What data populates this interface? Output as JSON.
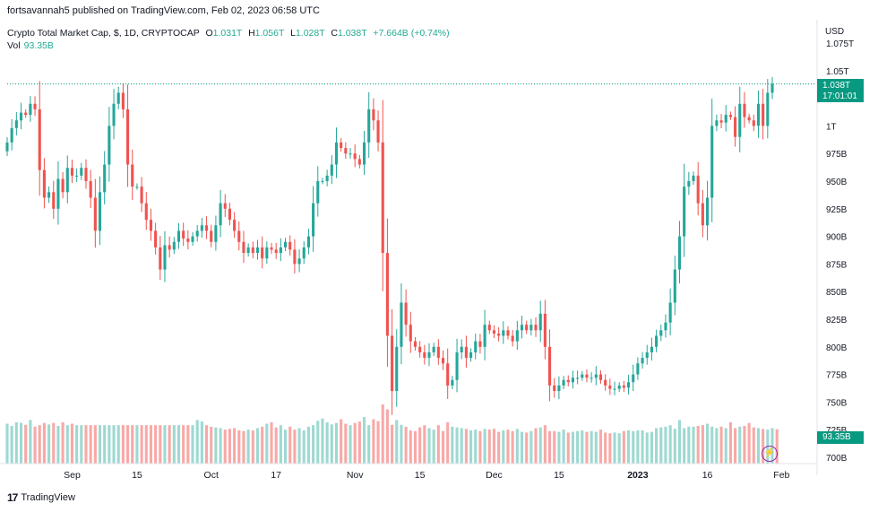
{
  "publisher": "fortsavannah5 published on TradingView.com, Feb 02, 2023 06:58 UTC",
  "legend": {
    "symbol": "Crypto Total Market Cap, $, 1D, CRYPTOCAP",
    "open_label": "O",
    "open": "1.031T",
    "high_label": "H",
    "high": "1.056T",
    "low_label": "L",
    "low": "1.028T",
    "close_label": "C",
    "close": "1.038T",
    "change": "+7.664B (+0.74%)"
  },
  "volume": {
    "label": "Vol",
    "value": "93.35B"
  },
  "axis": {
    "currency": "USD",
    "price_tag": "1.038T",
    "countdown": "17:01:01",
    "volume_tag": "93.35B"
  },
  "footer": {
    "brand": "TradingView"
  },
  "colors": {
    "up": "#26a69a",
    "down": "#ef5350",
    "vol_up": "#9ed9d1",
    "vol_down": "#f7a9a7",
    "accent": "#089981"
  },
  "chart_data": {
    "type": "candlestick",
    "title": "Crypto Total Market Cap, $, 1D, CRYPTOCAP",
    "ylabel": "USD",
    "ylim": [
      700,
      1075
    ],
    "y_ticks": [
      {
        "value": 1075,
        "label": "1.075T"
      },
      {
        "value": 1050,
        "label": "1.05T"
      },
      {
        "value": 1000,
        "label": "1T"
      },
      {
        "value": 975,
        "label": "975B"
      },
      {
        "value": 950,
        "label": "950B"
      },
      {
        "value": 925,
        "label": "925B"
      },
      {
        "value": 900,
        "label": "900B"
      },
      {
        "value": 875,
        "label": "875B"
      },
      {
        "value": 850,
        "label": "850B"
      },
      {
        "value": 825,
        "label": "825B"
      },
      {
        "value": 800,
        "label": "800B"
      },
      {
        "value": 775,
        "label": "775B"
      },
      {
        "value": 750,
        "label": "750B"
      },
      {
        "value": 725,
        "label": "725B"
      },
      {
        "value": 700,
        "label": "700B"
      }
    ],
    "x_ticks": [
      {
        "index": 14,
        "label": "Sep"
      },
      {
        "index": 28,
        "label": "15"
      },
      {
        "index": 44,
        "label": "Oct"
      },
      {
        "index": 58,
        "label": "17"
      },
      {
        "index": 75,
        "label": "Nov"
      },
      {
        "index": 89,
        "label": "15"
      },
      {
        "index": 105,
        "label": "Dec"
      },
      {
        "index": 119,
        "label": "15"
      },
      {
        "index": 136,
        "label": "2023"
      },
      {
        "index": 151,
        "label": "16"
      },
      {
        "index": 167,
        "label": "Feb"
      }
    ],
    "last_price": 1038,
    "current_volume_b": 93.35,
    "closes": [
      985,
      998,
      1005,
      1012,
      1010,
      1020,
      1015,
      960,
      935,
      940,
      925,
      952,
      940,
      962,
      955,
      955,
      962,
      950,
      935,
      905,
      940,
      965,
      1000,
      1020,
      1030,
      1015,
      965,
      945,
      945,
      930,
      915,
      905,
      890,
      870,
      892,
      888,
      895,
      905,
      898,
      895,
      900,
      905,
      910,
      905,
      895,
      910,
      930,
      925,
      915,
      905,
      895,
      885,
      890,
      885,
      890,
      880,
      890,
      888,
      885,
      890,
      895,
      888,
      875,
      880,
      890,
      900,
      930,
      950,
      950,
      955,
      965,
      985,
      980,
      975,
      975,
      970,
      965,
      985,
      1015,
      1005,
      985,
      885,
      810,
      760,
      800,
      840,
      820,
      805,
      800,
      795,
      790,
      795,
      800,
      790,
      785,
      765,
      770,
      795,
      800,
      790,
      795,
      805,
      800,
      820,
      815,
      812,
      810,
      815,
      810,
      805,
      815,
      820,
      815,
      820,
      815,
      830,
      800,
      765,
      760,
      765,
      770,
      768,
      772,
      772,
      775,
      772,
      772,
      775,
      770,
      765,
      762,
      762,
      765,
      763,
      768,
      775,
      785,
      790,
      795,
      800,
      810,
      815,
      822,
      840,
      870,
      900,
      945,
      950,
      955,
      930,
      910,
      935,
      1000,
      1005,
      1003,
      1010,
      1008,
      990,
      1020,
      1008,
      1005,
      1000,
      1020,
      1000,
      1030,
      1038
    ],
    "volumes_b": [
      108,
      102,
      112,
      110,
      105,
      118,
      100,
      104,
      110,
      106,
      110,
      102,
      112,
      104,
      108,
      104,
      104,
      104,
      104,
      104,
      104,
      104,
      104,
      104,
      104,
      104,
      104,
      104,
      104,
      104,
      104,
      104,
      104,
      104,
      104,
      104,
      104,
      104,
      104,
      104,
      104,
      118,
      114,
      104,
      100,
      98,
      96,
      92,
      94,
      96,
      90,
      88,
      92,
      90,
      96,
      100,
      108,
      112,
      98,
      104,
      92,
      100,
      92,
      96,
      90,
      100,
      104,
      116,
      122,
      112,
      106,
      110,
      120,
      108,
      104,
      110,
      114,
      126,
      104,
      120,
      115,
      160,
      147,
      105,
      118,
      105,
      100,
      90,
      88,
      98,
      104,
      96,
      92,
      104,
      88,
      112,
      100,
      98,
      96,
      94,
      90,
      92,
      88,
      94,
      92,
      94,
      86,
      90,
      92,
      88,
      94,
      86,
      84,
      88,
      96,
      98,
      104,
      88,
      88,
      86,
      92,
      84,
      86,
      88,
      90,
      86,
      88,
      86,
      92,
      84,
      82,
      84,
      82,
      88,
      90,
      88,
      90,
      90,
      84,
      86,
      96,
      98,
      100,
      104,
      94,
      118,
      96,
      100,
      100,
      102,
      104,
      108,
      100,
      96,
      100,
      96,
      112,
      96,
      100,
      102,
      110,
      98,
      96,
      94,
      92,
      96,
      93
    ]
  }
}
